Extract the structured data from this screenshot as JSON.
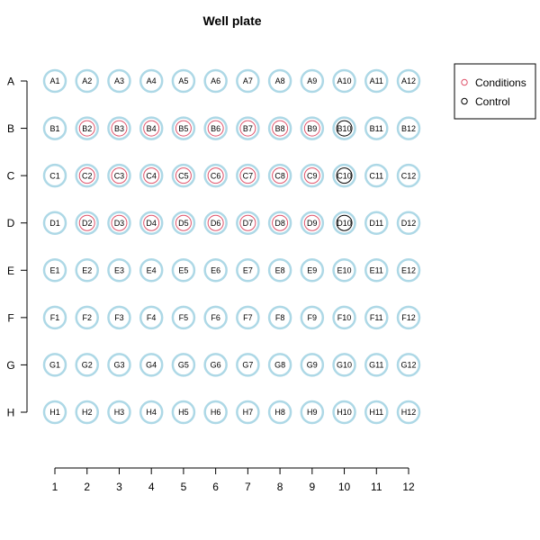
{
  "chart_data": {
    "type": "scatter",
    "title": "Well plate",
    "columns": [
      "1",
      "2",
      "3",
      "4",
      "5",
      "6",
      "7",
      "8",
      "9",
      "10",
      "11",
      "12"
    ],
    "rows": [
      "A",
      "B",
      "C",
      "D",
      "E",
      "F",
      "G",
      "H"
    ],
    "xlim": [
      1,
      12
    ],
    "grid": false,
    "legend_position": "top-right",
    "legend": [
      {
        "name": "Conditions",
        "color": "#DF536B"
      },
      {
        "name": "Control",
        "color": "#000000"
      }
    ],
    "colors": {
      "well_outline": "#ADD8E6",
      "conditions": "#DF536B",
      "control": "#000000"
    },
    "conditions_wells": [
      "B2",
      "B3",
      "B4",
      "B5",
      "B6",
      "B7",
      "B8",
      "B9",
      "C2",
      "C3",
      "C4",
      "C5",
      "C6",
      "C7",
      "C8",
      "C9",
      "D2",
      "D3",
      "D4",
      "D5",
      "D6",
      "D7",
      "D8",
      "D9"
    ],
    "control_wells": [
      "B10",
      "C10",
      "D10"
    ]
  }
}
